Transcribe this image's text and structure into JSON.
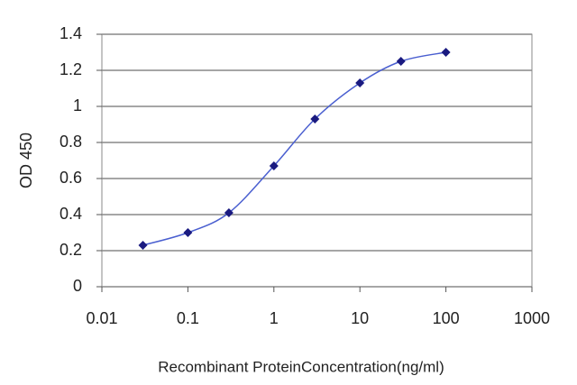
{
  "chart_data": {
    "type": "line",
    "x_label": "Recombinant ProteinConcentration(ng/ml)",
    "y_label": "OD 450",
    "x": [
      0.03,
      0.1,
      0.3,
      1,
      3,
      10,
      30,
      100
    ],
    "values": [
      0.23,
      0.3,
      0.41,
      0.67,
      0.93,
      1.13,
      1.25,
      1.3
    ],
    "color": "#1a1a80",
    "line_color": "#4a5fd0",
    "xscale": "log",
    "xlim": [
      0.01,
      1000
    ],
    "xticks": [
      0.01,
      0.1,
      1,
      10,
      100,
      1000
    ],
    "ylim": [
      0,
      1.4
    ],
    "yticks": [
      0,
      0.2,
      0.4,
      0.6,
      0.8,
      1,
      1.2,
      1.4
    ],
    "grid": true
  }
}
